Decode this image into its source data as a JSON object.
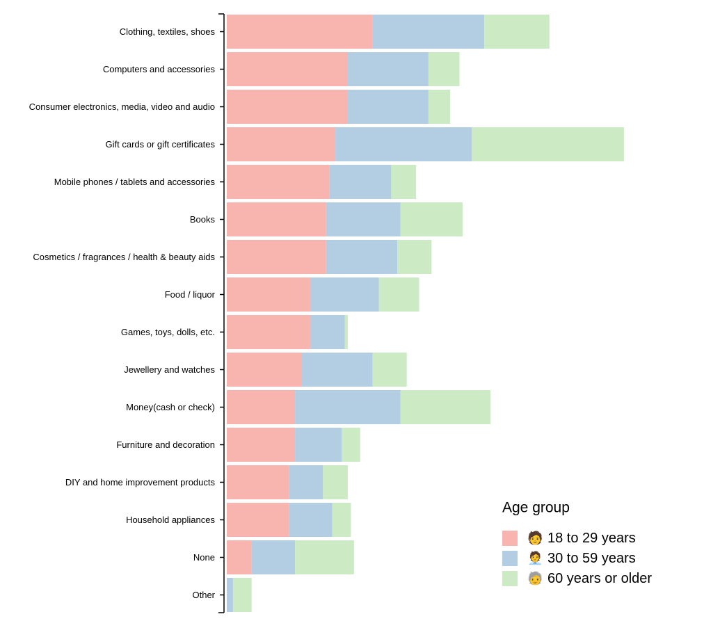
{
  "chart_data": {
    "type": "bar",
    "orientation": "horizontal",
    "stacked": true,
    "categories": [
      "Clothing, textiles, shoes",
      "Computers and accessories",
      "Consumer electronics, media, video and audio",
      "Gift cards or gift certificates",
      "Mobile phones / tablets and accessories",
      "Books",
      "Cosmetics / fragrances / health & beauty aids",
      "Food / liquor",
      "Games, toys, dolls, etc.",
      "Jewellery and watches",
      "Money(cash or check)",
      "Furniture and decoration",
      "DIY and home improvement products",
      "Household appliances",
      "None",
      "Other"
    ],
    "series": [
      {
        "name": "18 to 29 years",
        "emoji": "🧑",
        "color": "#f8b4ae",
        "values": [
          47,
          39,
          39,
          35,
          33,
          32,
          32,
          27,
          27,
          24,
          22,
          22,
          20,
          20,
          8,
          0
        ]
      },
      {
        "name": "30 to 59 years",
        "emoji": "🧑‍💼",
        "color": "#b3cde3",
        "values": [
          36,
          26,
          26,
          44,
          20,
          24,
          23,
          22,
          11,
          23,
          34,
          15,
          11,
          14,
          14,
          2
        ]
      },
      {
        "name": "60 years or older",
        "emoji": "🧓",
        "color": "#ccebc5",
        "values": [
          21,
          10,
          7,
          49,
          8,
          20,
          11,
          13,
          1,
          11,
          29,
          6,
          8,
          6,
          19,
          6
        ]
      }
    ],
    "xlim": [
      0,
      150
    ],
    "title": "",
    "xlabel": "",
    "ylabel": "",
    "grid": false,
    "legend": {
      "title": "Age group",
      "position": "bottom-right"
    }
  }
}
